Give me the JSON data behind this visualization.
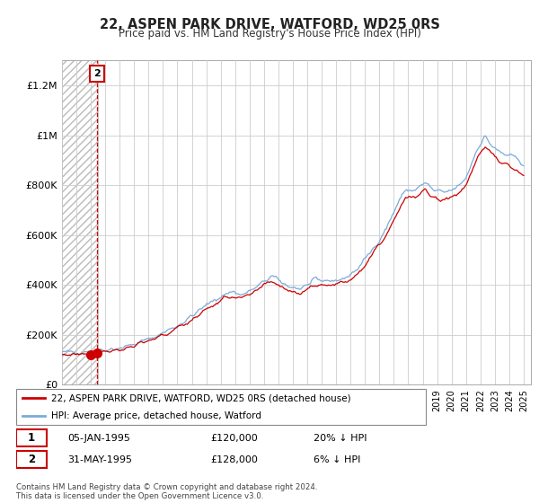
{
  "title": "22, ASPEN PARK DRIVE, WATFORD, WD25 0RS",
  "subtitle": "Price paid vs. HM Land Registry's House Price Index (HPI)",
  "legend_line1": "22, ASPEN PARK DRIVE, WATFORD, WD25 0RS (detached house)",
  "legend_line2": "HPI: Average price, detached house, Watford",
  "transaction1_date": "05-JAN-1995",
  "transaction1_price": "£120,000",
  "transaction1_hpi": "20% ↓ HPI",
  "transaction2_date": "31-MAY-1995",
  "transaction2_price": "£128,000",
  "transaction2_hpi": "6% ↓ HPI",
  "red_color": "#cc0000",
  "blue_color": "#7aabdb",
  "grid_color": "#cccccc",
  "ytick_labels": [
    "£0",
    "£200K",
    "£400K",
    "£600K",
    "£800K",
    "£1M",
    "£1.2M"
  ],
  "yticks": [
    0,
    200000,
    400000,
    600000,
    800000,
    1000000,
    1200000
  ],
  "ylim_max": 1300000,
  "footer_text": "Contains HM Land Registry data © Crown copyright and database right 2024.\nThis data is licensed under the Open Government Licence v3.0.",
  "sale1_year": 1995.02,
  "sale1_price": 120000,
  "sale2_year": 1995.42,
  "sale2_price": 128000,
  "hatch_end": 1995.5,
  "xmin": 1993.0,
  "xmax": 2025.5
}
